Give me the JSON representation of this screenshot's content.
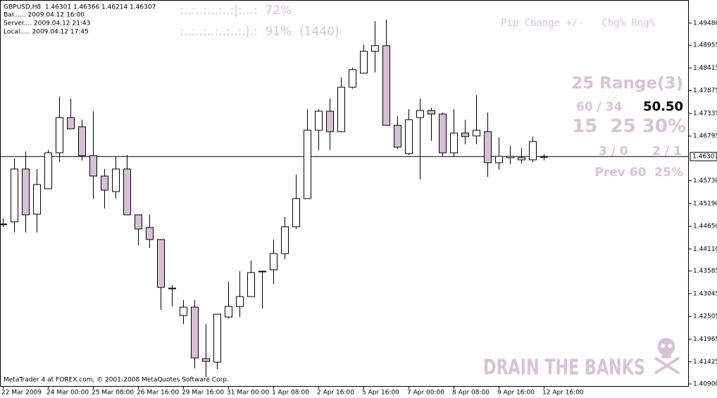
{
  "chart_data": {
    "type": "candlestick",
    "title": "GBPUSD,H8  1.46301 1.46366 1.46214 1.46307",
    "categories": [
      "22 Mar 2009",
      null,
      null,
      null,
      "24 Mar 00:00",
      null,
      null,
      null,
      "25 Mar 08:00",
      null,
      null,
      null,
      "26 Mar 16:00",
      null,
      null,
      null,
      "29 Mar 16:00",
      null,
      null,
      null,
      "31 Mar 00:00",
      null,
      null,
      null,
      "1 Apr 08:00",
      null,
      null,
      null,
      "2 Apr 16:00",
      null,
      null,
      null,
      "5 Apr 16:00",
      null,
      null,
      null,
      "7 Apr 00:00",
      null,
      null,
      null,
      "8 Apr 08:00",
      null,
      null,
      null,
      "9 Apr 16:00",
      null,
      null,
      null,
      "12 Apr 16:00"
    ],
    "open": [
      1.44703,
      1.44754,
      1.46011,
      1.44938,
      1.45541,
      1.46396,
      1.47234,
      1.47016,
      1.46329,
      1.45843,
      1.45474,
      1.46011,
      1.44921,
      1.4462,
      1.44335,
      1.43178,
      1.42525,
      1.42726,
      1.41502,
      1.41418,
      1.42491,
      1.42742,
      1.42977,
      1.43564,
      1.43614,
      1.43999,
      1.44636,
      1.45307,
      1.46932,
      1.47385,
      1.46899,
      1.47955,
      1.4829,
      1.4881,
      1.48944,
      1.4705,
      1.46379,
      1.47234,
      1.47402,
      1.47318,
      1.46396,
      1.46865,
      1.46798,
      1.46899,
      1.46161,
      1.46279,
      1.46229,
      1.46229,
      1.46301
    ],
    "high": [
      1.44837,
      1.46262,
      1.4643,
      1.46011,
      1.46463,
      1.47737,
      1.47687,
      1.47184,
      1.47385,
      1.46011,
      1.46312,
      1.46346,
      1.44921,
      1.44921,
      1.44335,
      1.43245,
      1.42893,
      1.42893,
      1.42323,
      1.42558,
      1.43329,
      1.4358,
      1.43832,
      1.43597,
      1.44335,
      1.44871,
      1.45877,
      1.47435,
      1.47435,
      1.47687,
      1.48189,
      1.48424,
      1.48977,
      1.4953,
      1.49564,
      1.47268,
      1.47435,
      1.47687,
      1.47469,
      1.47351,
      1.47435,
      1.47184,
      1.4777,
      1.47351,
      1.46765,
      1.46564,
      1.46513,
      1.46782,
      1.46366
    ],
    "low": [
      1.44636,
      1.44502,
      1.44502,
      1.44502,
      1.45541,
      1.46178,
      1.46966,
      1.46212,
      1.45307,
      1.45072,
      1.45307,
      1.44921,
      1.44201,
      1.44134,
      1.42659,
      1.42742,
      1.42323,
      1.41268,
      1.41066,
      1.41251,
      1.42458,
      1.42491,
      1.42977,
      1.42692,
      1.43279,
      1.43865,
      1.44586,
      1.45307,
      1.46463,
      1.46463,
      1.46882,
      1.47921,
      1.4829,
      1.48307,
      1.4705,
      1.4648,
      1.46346,
      1.45759,
      1.46681,
      1.46312,
      1.46296,
      1.46597,
      1.46597,
      1.45826,
      1.45994,
      1.46128,
      1.46145,
      1.46178,
      1.46214
    ],
    "close": [
      1.44703,
      1.46011,
      1.44921,
      1.45642,
      1.46396,
      1.47234,
      1.46966,
      1.46329,
      1.45843,
      1.45508,
      1.46011,
      1.44921,
      1.44586,
      1.44335,
      1.43195,
      1.43161,
      1.42726,
      1.41519,
      1.41435,
      1.42558,
      1.42742,
      1.42977,
      1.43547,
      1.4358,
      1.43999,
      1.44636,
      1.45307,
      1.46932,
      1.47385,
      1.46899,
      1.47955,
      1.48374,
      1.4881,
      1.48944,
      1.4705,
      1.4653,
      1.47184,
      1.47402,
      1.47318,
      1.46396,
      1.46865,
      1.46782,
      1.46932,
      1.46161,
      1.46312,
      1.46312,
      1.46279,
      1.46664,
      1.46307
    ],
    "up_color": "#ffffff",
    "down_color": "#d8bfd8",
    "current_price": 1.46307,
    "ylim": [
      1.4085,
      1.5003
    ],
    "yticks": [
      {
        "value": 1.4948,
        "label": "1.49480"
      },
      1.48955,
      1.48415,
      1.47875,
      1.47335,
      1.46795,
      {
        "value": 1.4573,
        "label": "1.45730"
      },
      {
        "value": 1.4519,
        "label": "1.45190"
      },
      {
        "value": 1.4465,
        "label": "1.44650"
      },
      {
        "value": 1.4411,
        "label": "1.44110"
      },
      1.43585,
      1.43045,
      1.42505,
      1.41965,
      1.41425,
      {
        "value": 1.409,
        "label": "1.40900"
      }
    ]
  },
  "overlay": {
    "info": [
      "Bar...... 2009.04.12 16:00",
      "Server.... 2009.04.12 21:43",
      "Local..... 2009.04.12 17:45"
    ],
    "strength": [
      ":..:..:...:..:|:...:  72%",
      ":..:..:..:..:..:.|.:  91%  (1440)"
    ],
    "header": "Pip Change +/-   Chg% Rng%",
    "range": "25 Range(3)",
    "ratio": "60 / 34",
    "pips": "50.50",
    "stats": "15  25 30%",
    "count_a": "3 / 0",
    "count_b": "2 / 1",
    "prev": "Prev 60  25%",
    "banner": "DRAIN THE BANKS",
    "footer": "MetaTrader 4 at FOREX.com, © 2001-2008 MetaQuotes Software Corp."
  }
}
